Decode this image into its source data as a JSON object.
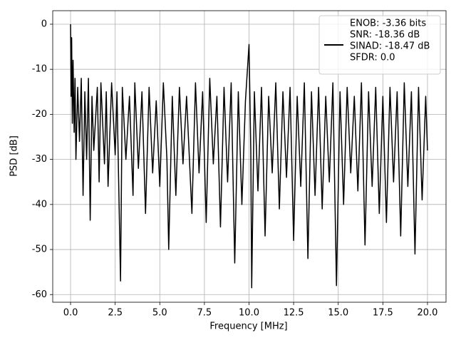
{
  "chart_data": {
    "type": "line",
    "xlabel": "Frequency [MHz]",
    "ylabel": "PSD [dB]",
    "xlim": [
      -1.0,
      21.04
    ],
    "ylim": [
      -61.7,
      3.0
    ],
    "xticks": [
      {
        "value": 0,
        "label": "0.0"
      },
      2.5,
      {
        "value": 5,
        "label": "5.0"
      },
      7.5,
      {
        "value": 10,
        "label": "10.0"
      },
      12.5,
      {
        "value": 15,
        "label": "15.0"
      },
      17.5,
      {
        "value": 20,
        "label": "20.0"
      }
    ],
    "yticks": [
      0,
      -10,
      -20,
      -30,
      -40,
      -50,
      -60
    ],
    "grid": true,
    "legend": {
      "loc": "upper right",
      "lines": [
        "ENOB: -3.36 bits",
        "SNR: -18.36 dB",
        "SINAD: -18.47 dB",
        "SFDR: 0.0"
      ]
    },
    "series": [
      {
        "color": "#000000",
        "x": [
          0,
          0.03,
          0.06,
          0.1,
          0.14,
          0.2,
          0.25,
          0.3,
          0.4,
          0.5,
          0.6,
          0.7,
          0.8,
          0.9,
          1.0,
          1.1,
          1.2,
          1.3,
          1.5,
          1.6,
          1.7,
          1.9,
          2.0,
          2.1,
          2.3,
          2.5,
          2.6,
          2.8,
          2.9,
          3.1,
          3.3,
          3.5,
          3.6,
          3.8,
          4.0,
          4.2,
          4.4,
          4.6,
          4.8,
          5.0,
          5.2,
          5.4,
          5.5,
          5.7,
          5.9,
          6.1,
          6.3,
          6.5,
          6.8,
          7.0,
          7.2,
          7.4,
          7.6,
          7.8,
          8.0,
          8.2,
          8.4,
          8.6,
          8.8,
          9.0,
          9.2,
          9.4,
          9.6,
          9.8,
          10.0,
          10.1,
          10.15,
          10.3,
          10.5,
          10.7,
          10.9,
          11.1,
          11.3,
          11.5,
          11.7,
          11.9,
          12.1,
          12.3,
          12.5,
          12.7,
          12.9,
          13.1,
          13.3,
          13.5,
          13.7,
          13.9,
          14.1,
          14.3,
          14.5,
          14.7,
          14.9,
          15.1,
          15.3,
          15.5,
          15.7,
          15.9,
          16.1,
          16.3,
          16.5,
          16.7,
          16.9,
          17.1,
          17.3,
          17.5,
          17.7,
          17.9,
          18.1,
          18.3,
          18.5,
          18.7,
          18.9,
          19.1,
          19.3,
          19.5,
          19.7,
          19.9,
          20.0
        ],
        "values": [
          0,
          -16,
          -3,
          -22,
          -8,
          -24,
          -12,
          -30,
          -14,
          -26,
          -12,
          -38,
          -15,
          -30,
          -12,
          -43.5,
          -16,
          -28,
          -14,
          -35,
          -13,
          -31,
          -15,
          -36,
          -13,
          -29,
          -15,
          -57,
          -14,
          -30,
          -16,
          -38,
          -13,
          -32,
          -15,
          -42,
          -14,
          -33,
          -17,
          -36,
          -13,
          -30,
          -50,
          -16,
          -38,
          -14,
          -31,
          -16,
          -42,
          -13,
          -33,
          -15,
          -44,
          -12,
          -31,
          -16,
          -45,
          -14,
          -35,
          -13,
          -53,
          -15,
          -40,
          -17,
          -4.5,
          -28,
          -58.5,
          -15,
          -37,
          -14,
          -47,
          -16,
          -33,
          -13,
          -41,
          -15,
          -34,
          -14,
          -48,
          -16,
          -36,
          -13,
          -52,
          -15,
          -38,
          -14,
          -41,
          -16,
          -35,
          -13,
          -58,
          -15,
          -40,
          -14,
          -33,
          -16,
          -37,
          -13,
          -49,
          -15,
          -36,
          -14,
          -42,
          -16,
          -44,
          -14,
          -35,
          -15,
          -47,
          -13,
          -36,
          -15,
          -51,
          -14,
          -39,
          -16,
          -28
        ]
      }
    ]
  }
}
